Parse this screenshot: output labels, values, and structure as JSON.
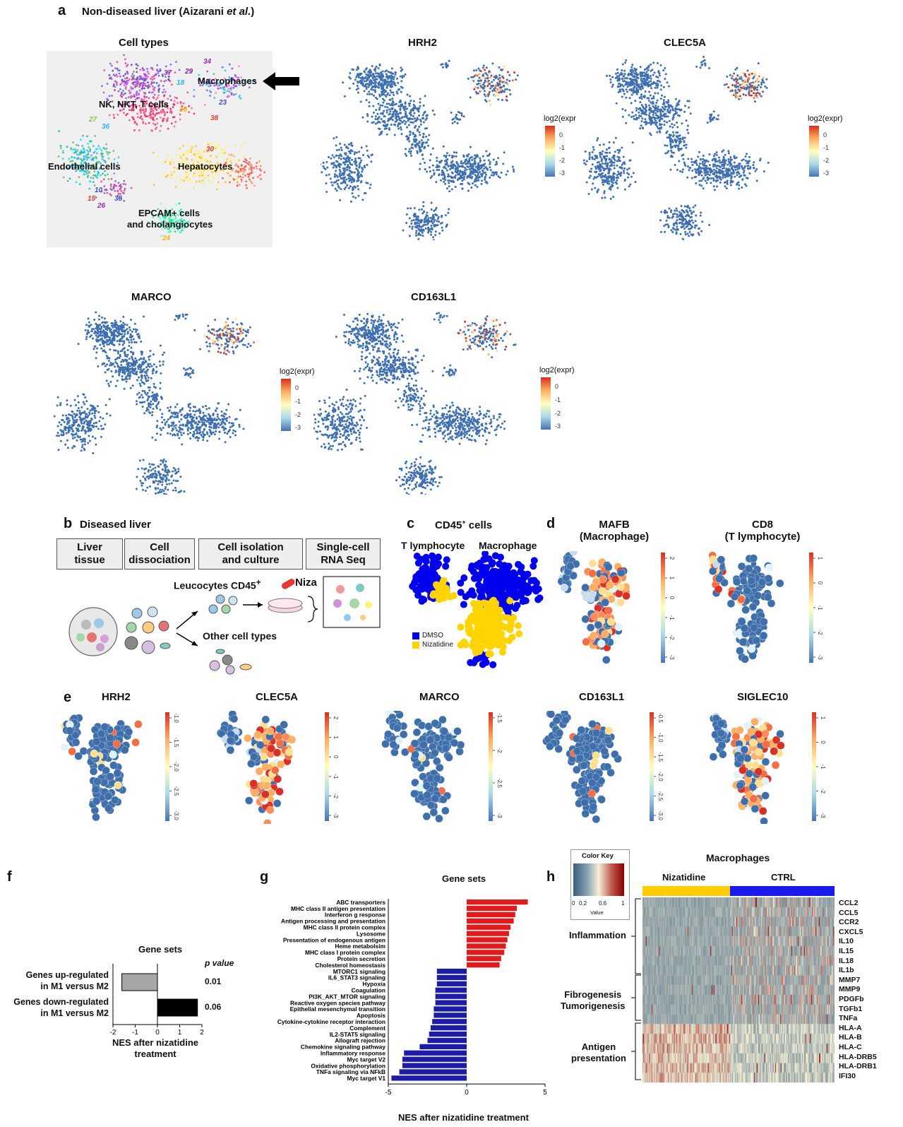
{
  "panel_a": {
    "letter": "a",
    "heading": "Non-diseased liver (Aizarani ",
    "heading_italic": "et al.",
    "heading_end": ")",
    "celltypes_title": "Cell types",
    "clusters": [
      "Macrophages",
      "NK, NKT, T cells",
      "Endothelial cells",
      "Hepatocytes",
      "EPCAM+ cells",
      "and cholangiocytes"
    ],
    "cluster_numbers": [
      "34",
      "37",
      "29",
      "18",
      "23",
      "16",
      "38",
      "27",
      "36",
      "30",
      "10",
      "15",
      "26",
      "35",
      "24"
    ],
    "legend_title": "log2(expr)",
    "legend_title_clipped": "log2(expr",
    "legend_ticks": [
      "0",
      "-1",
      "-2",
      "-3"
    ],
    "genes": [
      "HRH2",
      "CLEC5A",
      "MARCO",
      "CD163L1"
    ]
  },
  "panel_b": {
    "letter": "b",
    "title": "Diseased liver",
    "steps": [
      {
        "l1": "Liver",
        "l2": "tissue"
      },
      {
        "l1": "Cell",
        "l2": "dissociation"
      },
      {
        "l1": "Cell isolation",
        "l2": "and culture"
      },
      {
        "l1": "Single-cell",
        "l2": "RNA Seq"
      }
    ],
    "leucocytes": "Leucocytes CD45",
    "leucocytes_sup": "+",
    "niza": "Niza",
    "other": "Other cell types"
  },
  "panel_c": {
    "letter": "c",
    "title": "CD45",
    "title_sup": "+",
    "title_end": " cells",
    "left_label": "T lymphocyte",
    "right_label": "Macrophage",
    "legend": [
      {
        "name": "DMSO",
        "color": "#0000ee"
      },
      {
        "name": "Nizatidine",
        "color": "#ffd400"
      }
    ]
  },
  "panel_d": {
    "letter": "d",
    "plots": [
      {
        "title1": "MAFB",
        "title2": "(Macrophage)",
        "ticks": [
          "2",
          "1",
          "0",
          "-1",
          "-2",
          "-3"
        ]
      },
      {
        "title1": "CD8",
        "title2": "(T lymphocyte)",
        "ticks": [
          "1",
          "0",
          "-1",
          "-2",
          "-3"
        ]
      }
    ]
  },
  "panel_e": {
    "letter": "e",
    "plots": [
      {
        "gene": "HRH2",
        "ticks": [
          "-1.0",
          "-1.5",
          "-2.0",
          "-2.5",
          "-3.0"
        ]
      },
      {
        "gene": "CLEC5A",
        "ticks": [
          "2",
          "1",
          "0",
          "-1",
          "-2",
          "-3"
        ]
      },
      {
        "gene": "MARCO",
        "ticks": [
          "-1.5",
          "-2",
          "-2.5",
          "-3"
        ]
      },
      {
        "gene": "CD163L1",
        "ticks": [
          "-0.5",
          "-1.0",
          "-1.5",
          "-2.0",
          "-2.5",
          "-3.0"
        ]
      },
      {
        "gene": "SIGLEC10",
        "ticks": [
          "1",
          "0",
          "-1",
          "-2",
          "-3"
        ]
      }
    ]
  },
  "panel_f": {
    "letter": "f",
    "title": "Gene sets",
    "pvalue_header": "p value",
    "xlabel1": "NES after nizatidine",
    "xlabel2": "treatment",
    "chart_data": {
      "type": "bar",
      "orientation": "horizontal",
      "categories": [
        "Genes up-regulated in M1 versus M2",
        "Genes down-regulated in M1 versus M2"
      ],
      "category_lines": [
        [
          "Genes up-regulated",
          "in M1 versus M2"
        ],
        [
          "Genes down-regulated",
          "in M1 versus M2"
        ]
      ],
      "values": [
        -1.6,
        1.8
      ],
      "colors": [
        "#a6a6a6",
        "#000000"
      ],
      "pvalues": [
        "0.01",
        "0.06"
      ],
      "xlim": [
        -2,
        2
      ],
      "xticks": [
        "-2",
        "-1",
        "0",
        "1",
        "2"
      ]
    }
  },
  "panel_g": {
    "letter": "g",
    "title": "Gene sets",
    "xlabel": "NES after nizatidine treatment",
    "chart_data": {
      "type": "bar",
      "orientation": "horizontal",
      "xlim": [
        -5,
        5
      ],
      "xticks": [
        "-5",
        "0",
        "5"
      ],
      "categories": [
        "ABC transporters",
        "MHC class II antigen presentation",
        "Interferon g response",
        "Antigen processing and presentation",
        "MHC class II protein complex",
        "Lysosome",
        "Presentation of endogenous antigen",
        "Heme metabolsim",
        "MHC class I protein complex",
        "Protein secretion",
        "Cholesterol homeostasis",
        "MTORC1 signaling",
        "IL6_STAT3 signaling",
        "Hypoxia",
        "Coagulation",
        "PI3K_AKT_MTOR signaling",
        "Reactive oxygen species pathway",
        "Epithelial mesenchymal transition",
        "Apoptosis",
        "Cytokine-cytokine receptor interaction",
        "Complement",
        "IL2-STAT5 signaling",
        "Allograft rejection",
        "Chemokine signaling pathway",
        "Inflammatory response",
        "Myc target V2",
        "Oxidative phosphorylation",
        "TNFa signaling via NFkB",
        "Myc target V1"
      ],
      "values": [
        3.9,
        3.2,
        3.1,
        3.0,
        2.8,
        2.7,
        2.6,
        2.5,
        2.4,
        2.2,
        2.1,
        -1.9,
        -1.9,
        -1.9,
        -2.0,
        -2.0,
        -2.0,
        -2.1,
        -2.1,
        -2.2,
        -2.3,
        -2.4,
        -2.5,
        -3.0,
        -4.0,
        -4.1,
        -4.1,
        -4.3,
        -4.8
      ],
      "up_color": "#e31a1c",
      "down_color": "#1c1ca8"
    }
  },
  "panel_h": {
    "letter": "h",
    "title": "Macrophages",
    "color_key": "Color Key",
    "color_key_ticks": [
      "0",
      "0.2",
      "0.6",
      "1"
    ],
    "color_key_xlabel": "Value",
    "groups": [
      {
        "name": "Nizatidine",
        "color": "#ffcc00"
      },
      {
        "name": "CTRL",
        "color": "#1a1aee"
      }
    ],
    "categories": [
      {
        "lines": [
          "Inflammation"
        ]
      },
      {
        "lines": [
          "Fibrogenesis",
          "Tumorigenesis"
        ]
      },
      {
        "lines": [
          "Antigen",
          "presentation"
        ]
      }
    ],
    "genes": [
      "CCL2",
      "CCL5",
      "CCR2",
      "CXCL5",
      "IL10",
      "IL15",
      "IL18",
      "IL1b",
      "MMP7",
      "MMP9",
      "PDGFb",
      "TGFb1",
      "TNFa",
      "HLA-A",
      "HLA-B",
      "HLA-C",
      "HLA-DRB5",
      "HLA-DRB1",
      "IFI30"
    ]
  }
}
